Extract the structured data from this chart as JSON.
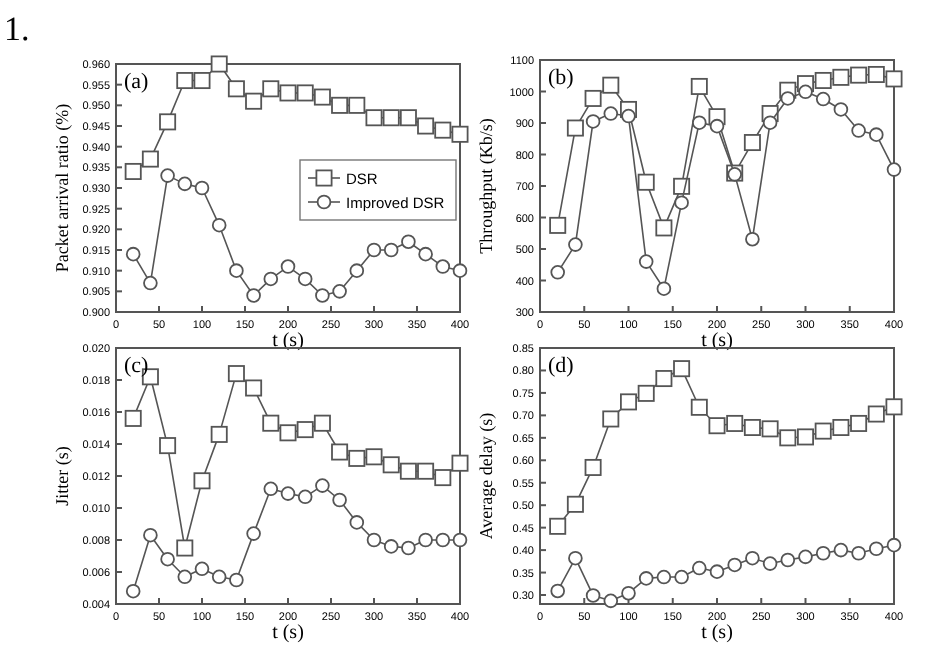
{
  "chart_data": [
    {
      "type": "line",
      "annotations": [
        "1.",
        "(a)"
      ],
      "xlabel": "t (s)",
      "ylabel": "Packet arrival ratio (%)",
      "legend": "right",
      "x": [
        20,
        40,
        60,
        80,
        100,
        120,
        140,
        160,
        180,
        200,
        220,
        240,
        260,
        280,
        300,
        320,
        340,
        360,
        380,
        400
      ],
      "xlim": [
        0,
        400
      ],
      "xticks": [
        0,
        50,
        100,
        150,
        200,
        250,
        300,
        350,
        400
      ],
      "ylim": [
        0.9,
        0.96
      ],
      "yticks": [
        {
          "value": 0.9,
          "label": "0.900"
        },
        0.905,
        {
          "value": 0.91,
          "label": "0.910"
        },
        0.915,
        {
          "value": 0.92,
          "label": "0.920"
        },
        0.925,
        {
          "value": 0.93,
          "label": "0.930"
        },
        0.935,
        {
          "value": 0.94,
          "label": "0.940"
        },
        0.945,
        {
          "value": 0.95,
          "label": "0.950"
        },
        0.955,
        {
          "value": 0.96,
          "label": "0.960"
        }
      ],
      "series": [
        {
          "name": "DSR",
          "color": "#555555",
          "marker": "square",
          "values": [
            0.934,
            0.937,
            0.946,
            0.956,
            0.956,
            0.96,
            0.954,
            0.951,
            0.954,
            0.953,
            0.953,
            0.952,
            0.95,
            0.95,
            0.947,
            0.947,
            0.947,
            0.945,
            0.944,
            0.943
          ]
        },
        {
          "name": "Improved DSR",
          "color": "#555555",
          "marker": "circle",
          "values": [
            0.914,
            0.907,
            0.933,
            0.931,
            0.93,
            0.921,
            0.91,
            0.904,
            0.908,
            0.911,
            0.908,
            0.904,
            0.905,
            0.91,
            0.915,
            0.915,
            0.917,
            0.914,
            0.911,
            0.91
          ]
        }
      ]
    },
    {
      "type": "line",
      "annotations": [
        "(b)"
      ],
      "xlabel": "t (s)",
      "ylabel": "Throughput (Kb/s)",
      "x": [
        20,
        40,
        60,
        80,
        100,
        120,
        140,
        160,
        180,
        200,
        220,
        240,
        260,
        280,
        300,
        320,
        340,
        360,
        380,
        400
      ],
      "xlim": [
        0,
        400
      ],
      "xticks": [
        0,
        50,
        100,
        150,
        200,
        250,
        300,
        350,
        400
      ],
      "ylim": [
        300,
        1100
      ],
      "yticks": [
        300,
        400,
        500,
        600,
        700,
        800,
        900,
        1000,
        1100
      ],
      "series": [
        {
          "color": "#555555",
          "marker": "square",
          "values": [
            575,
            884,
            978,
            1020,
            943,
            712,
            567,
            699,
            1016,
            920,
            741,
            838,
            930,
            1004,
            1025,
            1035,
            1045,
            1052,
            1054,
            1040
          ]
        },
        {
          "color": "#555555",
          "marker": "circle",
          "values": [
            426,
            514,
            905,
            930,
            922,
            460,
            374,
            647,
            901,
            890,
            737,
            531,
            901,
            978,
            999,
            976,
            943,
            876,
            863,
            752
          ]
        }
      ]
    },
    {
      "type": "line",
      "annotations": [
        "(c)"
      ],
      "xlabel": "t (s)",
      "ylabel": "Jitter (s)",
      "x": [
        20,
        40,
        60,
        80,
        100,
        120,
        140,
        160,
        180,
        200,
        220,
        240,
        260,
        280,
        300,
        320,
        340,
        360,
        380,
        400
      ],
      "xlim": [
        0,
        400
      ],
      "xticks": [
        0,
        50,
        100,
        150,
        200,
        250,
        300,
        350,
        400
      ],
      "ylim": [
        0.004,
        0.02
      ],
      "yticks": [
        0.004,
        0.006,
        0.008,
        {
          "value": 0.01,
          "label": "0.010"
        },
        0.012,
        0.014,
        0.016,
        0.018,
        {
          "value": 0.02,
          "label": "0.020"
        }
      ],
      "series": [
        {
          "color": "#555555",
          "marker": "square",
          "values": [
            0.0156,
            0.0182,
            0.0139,
            0.0075,
            0.0117,
            0.0146,
            0.0184,
            0.0175,
            0.0153,
            0.0147,
            0.0149,
            0.0153,
            0.0135,
            0.0131,
            0.0132,
            0.0127,
            0.0123,
            0.0123,
            0.0119,
            0.0128
          ]
        },
        {
          "color": "#555555",
          "marker": "circle",
          "values": [
            0.0048,
            0.0083,
            0.0068,
            0.0057,
            0.0062,
            0.0057,
            0.0055,
            0.0084,
            0.0112,
            0.0109,
            0.0107,
            0.0114,
            0.0105,
            0.0091,
            0.008,
            0.0076,
            0.0075,
            0.008,
            0.008,
            0.008
          ]
        }
      ]
    },
    {
      "type": "line",
      "annotations": [
        "(d)"
      ],
      "xlabel": "t (s)",
      "ylabel": "Average delay (s)",
      "x": [
        20,
        40,
        60,
        80,
        100,
        120,
        140,
        160,
        180,
        200,
        220,
        240,
        260,
        280,
        300,
        320,
        340,
        360,
        380,
        400
      ],
      "xlim": [
        0,
        400
      ],
      "xticks": [
        0,
        50,
        100,
        150,
        200,
        250,
        300,
        350,
        400
      ],
      "ylim": [
        0.28,
        0.85
      ],
      "yticks": [
        {
          "value": 0.3,
          "label": "0.30"
        },
        0.35,
        {
          "value": 0.4,
          "label": "0.40"
        },
        0.45,
        {
          "value": 0.5,
          "label": "0.50"
        },
        0.55,
        {
          "value": 0.6,
          "label": "0.60"
        },
        0.65,
        {
          "value": 0.7,
          "label": "0.70"
        },
        0.75,
        {
          "value": 0.8,
          "label": "0.80"
        },
        0.85
      ],
      "series": [
        {
          "color": "#555555",
          "marker": "square",
          "values": [
            0.453,
            0.502,
            0.584,
            0.692,
            0.73,
            0.749,
            0.782,
            0.804,
            0.718,
            0.677,
            0.682,
            0.673,
            0.67,
            0.65,
            0.652,
            0.665,
            0.673,
            0.682,
            0.703,
            0.719
          ]
        },
        {
          "color": "#555555",
          "marker": "circle",
          "values": [
            0.309,
            0.382,
            0.299,
            0.287,
            0.304,
            0.337,
            0.34,
            0.34,
            0.36,
            0.352,
            0.367,
            0.382,
            0.37,
            0.378,
            0.385,
            0.393,
            0.4,
            0.393,
            0.403,
            0.411
          ]
        }
      ]
    }
  ]
}
